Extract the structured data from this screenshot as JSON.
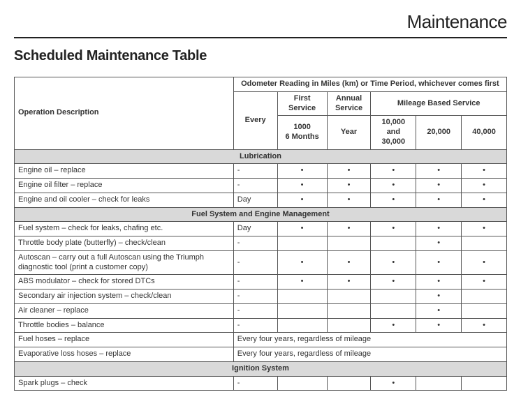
{
  "page_header": "Maintenance",
  "section_title": "Scheduled Maintenance Table",
  "headers": {
    "op": "Operation Description",
    "odometer": "Odometer Reading in Miles (km) or Time Period, whichever comes first",
    "first_service": "First Service",
    "annual_service": "Annual Service",
    "mileage_based": "Mileage Based Service",
    "every": "Every",
    "fs_val": "1000\n6 Months",
    "as_val": "Year",
    "m1": "10,000 and 30,000",
    "m2": "20,000",
    "m3": "40,000"
  },
  "marks": {
    "dot": "•",
    "dash": "-"
  },
  "rows": [
    {
      "type": "section",
      "label": "Lubrication"
    },
    {
      "type": "data",
      "op": "Engine oil – replace",
      "cells": [
        "-",
        "•",
        "•",
        "•",
        "•",
        "•"
      ]
    },
    {
      "type": "data",
      "op": "Engine oil filter – replace",
      "cells": [
        "-",
        "•",
        "•",
        "•",
        "•",
        "•"
      ]
    },
    {
      "type": "data",
      "op": "Engine and oil cooler – check for leaks",
      "cells": [
        "Day",
        "•",
        "•",
        "•",
        "•",
        "•"
      ]
    },
    {
      "type": "section",
      "label": "Fuel System and Engine Management"
    },
    {
      "type": "data",
      "op": "Fuel system – check for leaks, chafing etc.",
      "cells": [
        "Day",
        "•",
        "•",
        "•",
        "•",
        "•"
      ]
    },
    {
      "type": "data",
      "op": "Throttle body plate (butterfly) – check/clean",
      "cells": [
        "-",
        "",
        "",
        "",
        "•",
        ""
      ]
    },
    {
      "type": "data",
      "op": "Autoscan – carry out a full Autoscan using the Triumph diagnostic tool (print a customer copy)",
      "cells": [
        "-",
        "•",
        "•",
        "•",
        "•",
        "•"
      ]
    },
    {
      "type": "data",
      "op": "ABS modulator – check for stored DTCs",
      "cells": [
        "-",
        "•",
        "•",
        "•",
        "•",
        "•"
      ]
    },
    {
      "type": "data",
      "op": "Secondary air injection system – check/clean",
      "cells": [
        "-",
        "",
        "",
        "",
        "•",
        ""
      ]
    },
    {
      "type": "data",
      "op": "Air cleaner – replace",
      "cells": [
        "-",
        "",
        "",
        "",
        "•",
        ""
      ]
    },
    {
      "type": "data",
      "op": "Throttle bodies – balance",
      "cells": [
        "-",
        "",
        "",
        "•",
        "•",
        "•"
      ]
    },
    {
      "type": "span",
      "op": "Fuel hoses – replace",
      "text": "Every four years, regardless of mileage"
    },
    {
      "type": "span",
      "op": "Evaporative loss hoses – replace",
      "text": "Every four years, regardless of mileage"
    },
    {
      "type": "section",
      "label": "Ignition System"
    },
    {
      "type": "data",
      "op": "Spark plugs – check",
      "cells": [
        "-",
        "",
        "",
        "•",
        "",
        ""
      ]
    }
  ]
}
